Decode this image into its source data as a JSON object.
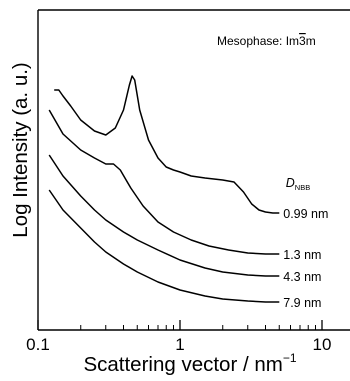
{
  "chart_data": {
    "type": "line",
    "title": "",
    "annotation": {
      "prefix": "Mesophase: Im",
      "bar_digit": "3",
      "suffix": "m"
    },
    "xlabel": "Scattering vector / nm",
    "xlabel_superscript": "−1",
    "ylabel": "Log Intensity (a. u.)",
    "xscale": "log",
    "xlim": [
      0.1,
      12
    ],
    "x_ticks": [
      {
        "value": 0.1,
        "label": "0.1"
      },
      {
        "value": 1,
        "label": "1"
      },
      {
        "value": 10,
        "label": "10"
      }
    ],
    "y_ticks_labeled": false,
    "grid": false,
    "legend_title": {
      "main": "D",
      "sub": "NBB"
    },
    "series": [
      {
        "name": "0.99 nm",
        "points": [
          [
            0.13,
            80
          ],
          [
            0.14,
            80
          ],
          [
            0.15,
            86
          ],
          [
            0.17,
            96
          ],
          [
            0.2,
            110
          ],
          [
            0.25,
            121
          ],
          [
            0.3,
            125
          ],
          [
            0.35,
            118
          ],
          [
            0.4,
            100
          ],
          [
            0.44,
            75
          ],
          [
            0.46,
            66
          ],
          [
            0.48,
            70
          ],
          [
            0.52,
            100
          ],
          [
            0.6,
            130
          ],
          [
            0.7,
            148
          ],
          [
            0.8,
            157
          ],
          [
            0.9,
            160
          ],
          [
            1.0,
            162
          ],
          [
            1.2,
            166
          ],
          [
            1.5,
            168
          ],
          [
            2.0,
            170
          ],
          [
            2.4,
            172
          ],
          [
            2.8,
            182
          ],
          [
            3.2,
            194
          ],
          [
            3.6,
            200
          ],
          [
            4.0,
            202
          ],
          [
            4.5,
            203
          ],
          [
            5.0,
            203
          ]
        ]
      },
      {
        "name": "1.3 nm",
        "points": [
          [
            0.12,
            100
          ],
          [
            0.15,
            124
          ],
          [
            0.2,
            140
          ],
          [
            0.25,
            148
          ],
          [
            0.3,
            154
          ],
          [
            0.34,
            154
          ],
          [
            0.38,
            160
          ],
          [
            0.45,
            178
          ],
          [
            0.55,
            196
          ],
          [
            0.7,
            212
          ],
          [
            0.9,
            222
          ],
          [
            1.2,
            230
          ],
          [
            1.6,
            236
          ],
          [
            2.2,
            240
          ],
          [
            3,
            243
          ],
          [
            4,
            244
          ],
          [
            5,
            244
          ]
        ]
      },
      {
        "name": "4.3 nm",
        "points": [
          [
            0.12,
            145
          ],
          [
            0.15,
            166
          ],
          [
            0.2,
            186
          ],
          [
            0.25,
            200
          ],
          [
            0.3,
            210
          ],
          [
            0.4,
            222
          ],
          [
            0.5,
            230
          ],
          [
            0.7,
            240
          ],
          [
            1.0,
            250
          ],
          [
            1.5,
            258
          ],
          [
            2,
            262
          ],
          [
            3,
            265
          ],
          [
            4,
            266
          ],
          [
            5,
            266
          ]
        ]
      },
      {
        "name": "7.9 nm",
        "points": [
          [
            0.12,
            180
          ],
          [
            0.15,
            200
          ],
          [
            0.2,
            218
          ],
          [
            0.25,
            232
          ],
          [
            0.3,
            242
          ],
          [
            0.4,
            254
          ],
          [
            0.5,
            262
          ],
          [
            0.7,
            272
          ],
          [
            1.0,
            280
          ],
          [
            1.5,
            286
          ],
          [
            2,
            289
          ],
          [
            3,
            291
          ],
          [
            4,
            292
          ],
          [
            5,
            292
          ]
        ]
      }
    ]
  }
}
